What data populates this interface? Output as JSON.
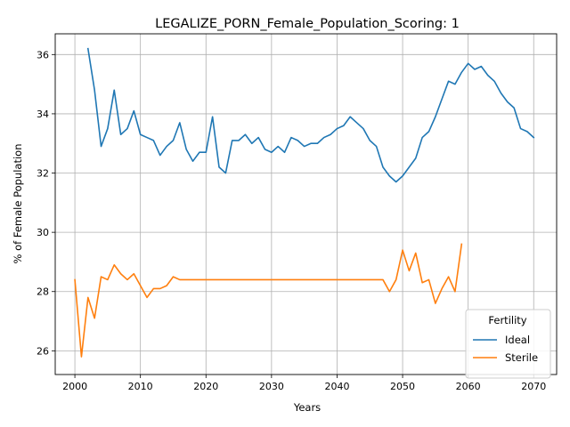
{
  "chart_data": {
    "type": "line",
    "title": "LEGALIZE_PORN_Female_Population_Scoring: 1",
    "xlabel": "Years",
    "ylabel": "% of Female Population",
    "xlim": [
      1997,
      2073.5
    ],
    "ylim": [
      25.2,
      36.7
    ],
    "xticks": [
      2000,
      2010,
      2020,
      2030,
      2040,
      2050,
      2060,
      2070
    ],
    "yticks": [
      26,
      28,
      30,
      32,
      34,
      36
    ],
    "grid": true,
    "legend": {
      "title": "Fertility",
      "placement": "lower-right"
    },
    "series": [
      {
        "name": "Ideal",
        "color": "#1f77b4",
        "x": [
          2002,
          2003,
          2004,
          2005,
          2006,
          2007,
          2008,
          2009,
          2010,
          2011,
          2012,
          2013,
          2014,
          2015,
          2016,
          2017,
          2018,
          2019,
          2020,
          2021,
          2022,
          2023,
          2024,
          2025,
          2026,
          2027,
          2028,
          2029,
          2030,
          2031,
          2032,
          2033,
          2034,
          2035,
          2036,
          2037,
          2038,
          2039,
          2040,
          2041,
          2042,
          2043,
          2044,
          2045,
          2046,
          2047,
          2048,
          2049,
          2050,
          2051,
          2052,
          2053,
          2054,
          2055,
          2056,
          2057,
          2058,
          2059,
          2060,
          2061,
          2062,
          2063,
          2064,
          2065,
          2066,
          2067,
          2068,
          2069,
          2070
        ],
        "y": [
          36.2,
          34.8,
          32.9,
          33.5,
          34.8,
          33.3,
          33.5,
          34.1,
          33.3,
          33.2,
          33.1,
          32.6,
          32.9,
          33.1,
          33.7,
          32.8,
          32.4,
          32.7,
          32.7,
          33.9,
          32.2,
          32.0,
          33.1,
          33.1,
          33.3,
          33.0,
          33.2,
          32.8,
          32.7,
          32.9,
          32.7,
          33.2,
          33.1,
          32.9,
          33.0,
          33.0,
          33.2,
          33.3,
          33.5,
          33.6,
          33.9,
          33.7,
          33.5,
          33.1,
          32.9,
          32.2,
          31.9,
          31.7,
          31.9,
          32.2,
          32.5,
          33.2,
          33.4,
          33.9,
          34.5,
          35.1,
          35.0,
          35.4,
          35.7,
          35.5,
          35.6,
          35.3,
          35.1,
          34.7,
          34.4,
          34.2,
          33.5,
          33.4,
          33.2
        ]
      },
      {
        "name": "Sterile",
        "color": "#ff7f0e",
        "x": [
          2000,
          2001,
          2002,
          2003,
          2004,
          2005,
          2006,
          2007,
          2008,
          2009,
          2010,
          2011,
          2012,
          2013,
          2014,
          2015,
          2016,
          2017,
          2018,
          2019,
          2020,
          2021,
          2022,
          2023,
          2024,
          2025,
          2026,
          2027,
          2028,
          2029,
          2030,
          2031,
          2032,
          2033,
          2034,
          2035,
          2036,
          2037,
          2038,
          2039,
          2040,
          2041,
          2042,
          2043,
          2044,
          2045,
          2046,
          2047,
          2048,
          2049,
          2050,
          2051,
          2052,
          2053,
          2054,
          2055,
          2056,
          2057,
          2058,
          2059
        ],
        "y": [
          28.4,
          25.8,
          27.8,
          27.1,
          28.5,
          28.4,
          28.9,
          28.6,
          28.4,
          28.6,
          28.2,
          27.8,
          28.1,
          28.1,
          28.2,
          28.5,
          28.4,
          28.4,
          28.4,
          28.4,
          28.4,
          28.4,
          28.4,
          28.4,
          28.4,
          28.4,
          28.4,
          28.4,
          28.4,
          28.4,
          28.4,
          28.4,
          28.4,
          28.4,
          28.4,
          28.4,
          28.4,
          28.4,
          28.4,
          28.4,
          28.4,
          28.4,
          28.4,
          28.4,
          28.4,
          28.4,
          28.4,
          28.4,
          28.0,
          28.4,
          29.4,
          28.7,
          29.3,
          28.3,
          28.4,
          27.6,
          28.1,
          28.5,
          28.0,
          29.6
        ]
      }
    ]
  }
}
